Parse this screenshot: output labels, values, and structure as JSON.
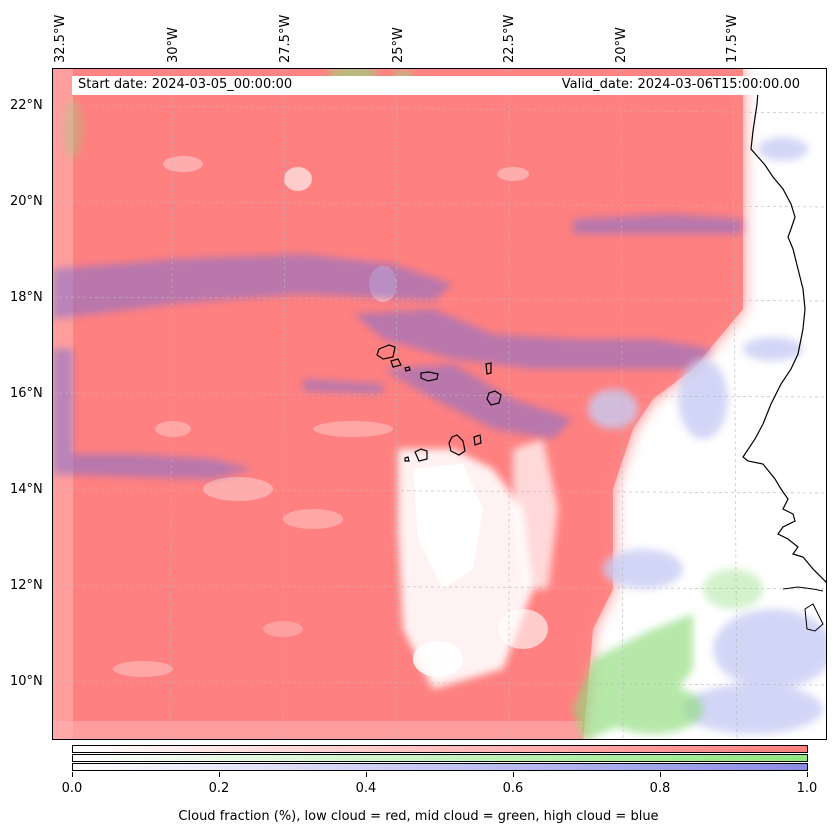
{
  "map": {
    "lon_labels": [
      "32.5°W",
      "30°W",
      "27.5°W",
      "25°W",
      "22.5°W",
      "20°W",
      "17.5°W"
    ],
    "lat_labels": [
      "22°N",
      "20°N",
      "18°N",
      "16°N",
      "14°N",
      "12°N",
      "10°N"
    ],
    "start_date": "Start date: 2024-03-05_00:00:00",
    "valid_date": "Valid_date: 2024-03-06T15:00:00.00"
  },
  "colorbar": {
    "tick_labels": [
      "0.0",
      "0.2",
      "0.4",
      "0.6",
      "0.8",
      "1.0"
    ],
    "caption": "Cloud fraction (%), low cloud = red, mid cloud = green, high cloud = blue",
    "colors": {
      "low": "#ff7f7f",
      "mid": "#8ee87f",
      "high": "#8c8ce8"
    }
  }
}
